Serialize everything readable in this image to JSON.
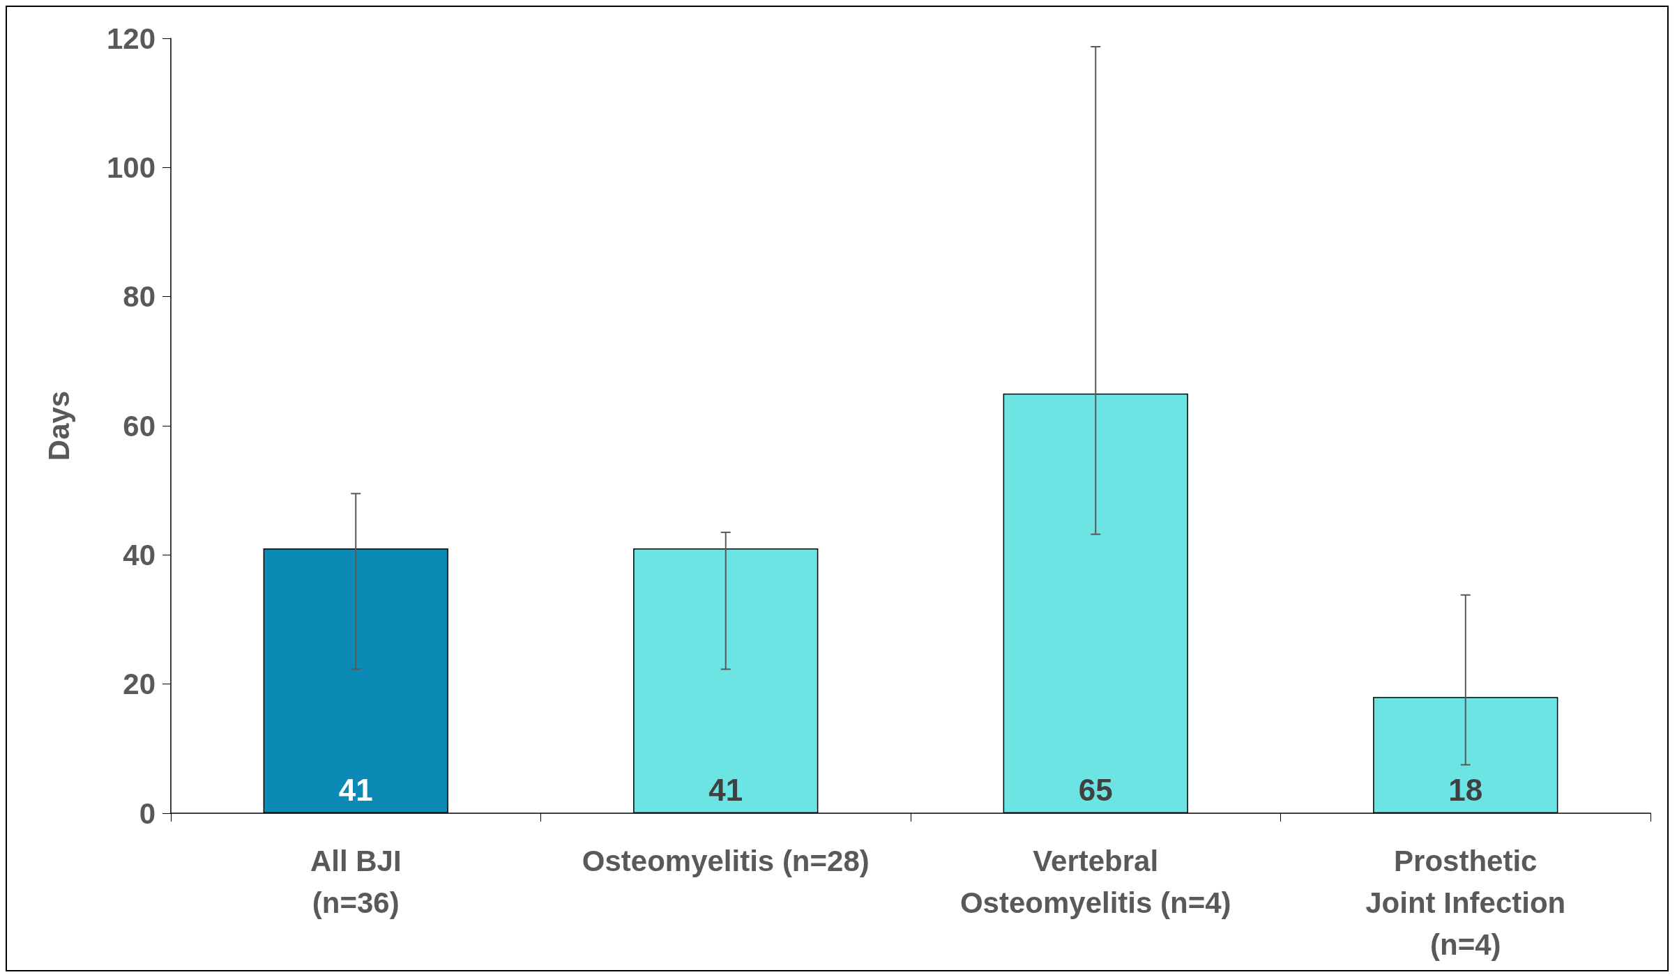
{
  "chart_data": {
    "type": "bar",
    "ylabel": "Days",
    "categories": [
      "All BJI\n(n=36)",
      "Osteomyelitis (n=28)",
      "Vertebral\nOsteomyelitis (n=4)",
      "Prosthetic\nJoint Infection\n(n=4)"
    ],
    "values": [
      41,
      41,
      65,
      18
    ],
    "colors": [
      "#0b8ab5",
      "#6ce4e3",
      "#6ce4e3",
      "#6ce4e3"
    ],
    "errors": [
      [
        22.3,
        49.5
      ],
      [
        22.3,
        43.5
      ],
      [
        43.2,
        118.7
      ],
      [
        7.5,
        33.8
      ]
    ],
    "data_labels": true,
    "ylim": [
      0,
      120
    ],
    "yticks": [
      0,
      20,
      40,
      60,
      80,
      100,
      120
    ],
    "grid": false
  }
}
